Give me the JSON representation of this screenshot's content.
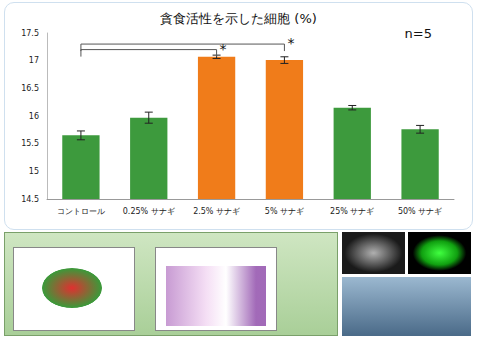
{
  "chart_data": {
    "type": "bar",
    "title": "貪食活性を示した細胞 (%)",
    "categories": [
      "コントロール",
      "0.25% サナギ",
      "2.5% サナギ",
      "5% サナギ",
      "25% サナギ",
      "50% サナギ"
    ],
    "values": [
      15.65,
      15.97,
      17.07,
      17.01,
      16.15,
      15.76
    ],
    "errors": [
      0.08,
      0.1,
      0.03,
      0.06,
      0.04,
      0.07
    ],
    "colors": [
      "#3d9a3d",
      "#3d9a3d",
      "#f07c1a",
      "#f07c1a",
      "#3d9a3d",
      "#3d9a3d"
    ],
    "ylim": [
      14.5,
      17.5
    ],
    "yticks": [
      14.5,
      15,
      15.5,
      16,
      16.5,
      17,
      17.5
    ],
    "grid": false,
    "annotations": [
      {
        "text": "n=5"
      }
    ],
    "significance": [
      {
        "from": "コントロール",
        "to": "2.5% サナギ",
        "y": 17.2,
        "label": "*"
      },
      {
        "from": "コントロール",
        "to": "5% サナギ",
        "y": 17.3,
        "label": "*"
      }
    ]
  }
}
